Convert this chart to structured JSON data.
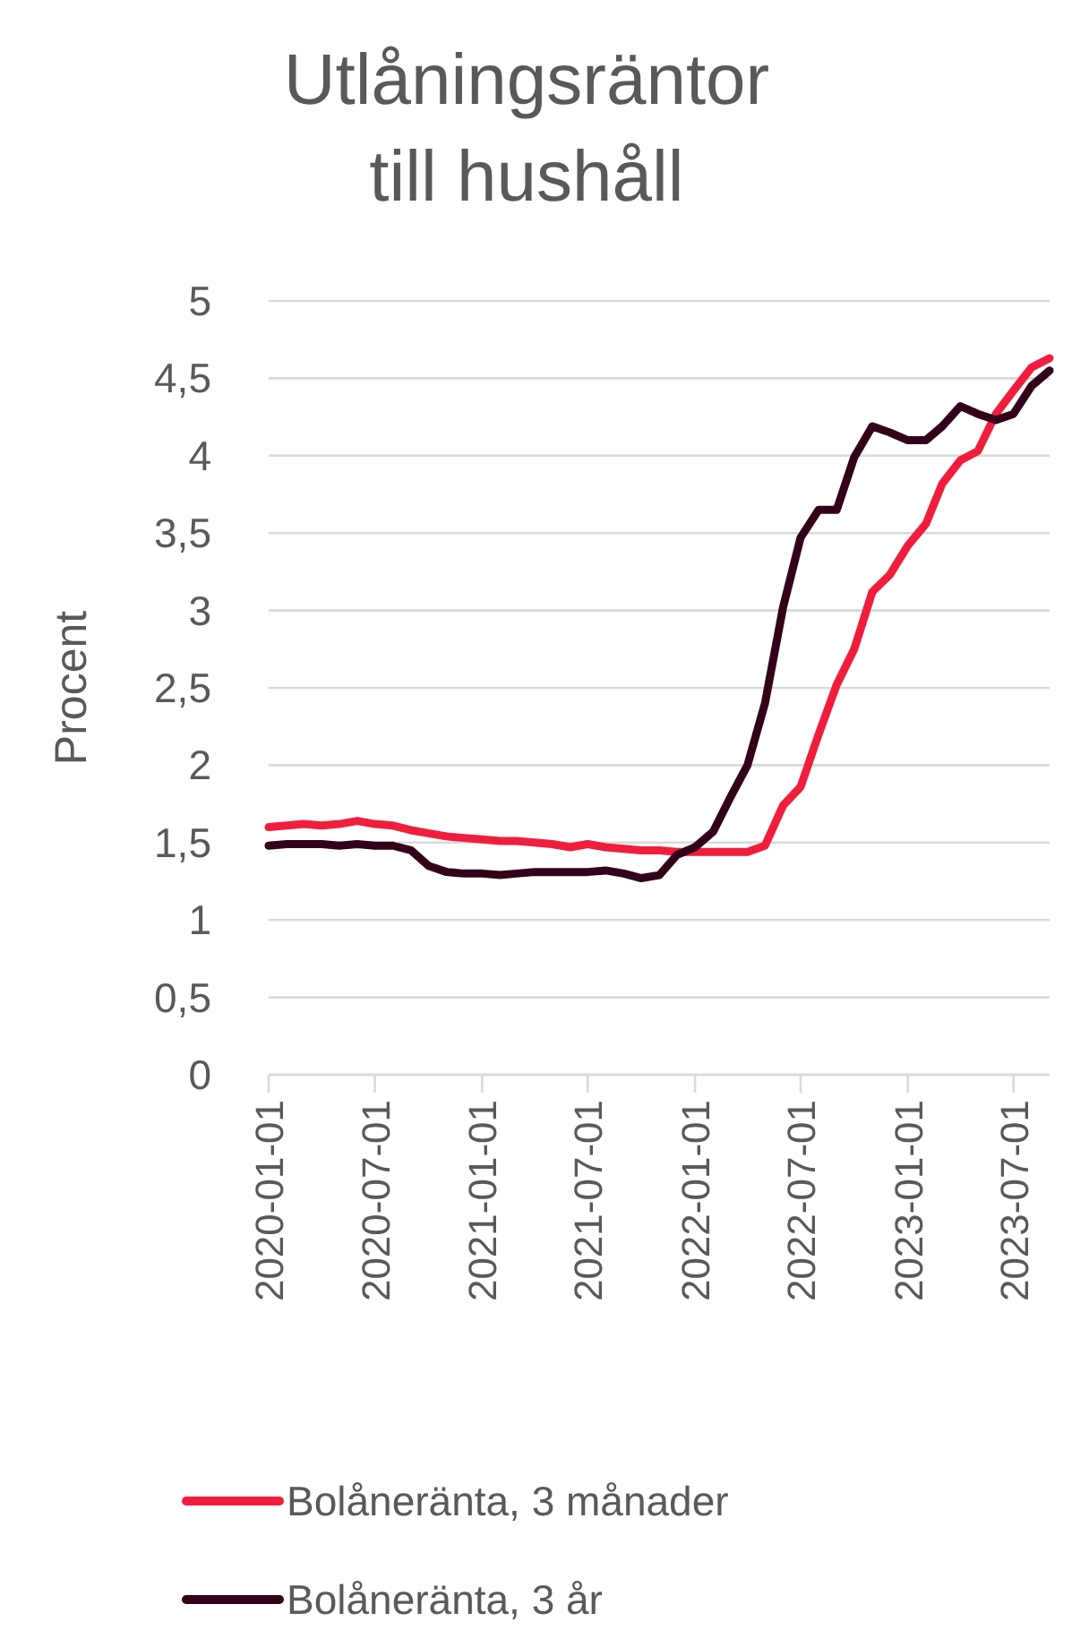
{
  "chart_data": {
    "type": "line",
    "title": "Utlåningsräntor till hushåll",
    "ylabel": "Procent",
    "x": [
      "2020-01",
      "2020-02",
      "2020-03",
      "2020-04",
      "2020-05",
      "2020-06",
      "2020-07",
      "2020-08",
      "2020-09",
      "2020-10",
      "2020-11",
      "2020-12",
      "2021-01",
      "2021-02",
      "2021-03",
      "2021-04",
      "2021-05",
      "2021-06",
      "2021-07",
      "2021-08",
      "2021-09",
      "2021-10",
      "2021-11",
      "2021-12",
      "2022-01",
      "2022-02",
      "2022-03",
      "2022-04",
      "2022-05",
      "2022-06",
      "2022-07",
      "2022-08",
      "2022-09",
      "2022-10",
      "2022-11",
      "2022-12",
      "2023-01",
      "2023-02",
      "2023-03",
      "2023-04",
      "2023-05",
      "2023-06",
      "2023-07",
      "2023-08",
      "2023-09"
    ],
    "series": [
      {
        "name": "Bolåneränta, 3 månader",
        "color": "#f01e3c",
        "values": [
          1.6,
          1.61,
          1.62,
          1.61,
          1.62,
          1.64,
          1.62,
          1.61,
          1.58,
          1.56,
          1.54,
          1.53,
          1.52,
          1.51,
          1.51,
          1.5,
          1.49,
          1.47,
          1.49,
          1.47,
          1.46,
          1.45,
          1.45,
          1.44,
          1.44,
          1.44,
          1.44,
          1.44,
          1.48,
          1.74,
          1.86,
          2.2,
          2.52,
          2.75,
          3.12,
          3.23,
          3.42,
          3.56,
          3.82,
          3.97,
          4.03,
          4.27,
          4.42,
          4.57,
          4.63
        ]
      },
      {
        "name": "Bolåneränta, 3 år",
        "color": "#33001a",
        "values": [
          1.48,
          1.49,
          1.49,
          1.49,
          1.48,
          1.49,
          1.48,
          1.48,
          1.45,
          1.35,
          1.31,
          1.3,
          1.3,
          1.29,
          1.3,
          1.31,
          1.31,
          1.31,
          1.31,
          1.32,
          1.3,
          1.27,
          1.29,
          1.42,
          1.47,
          1.57,
          1.78,
          2.0,
          2.4,
          3.02,
          3.47,
          3.65,
          3.65,
          3.99,
          4.19,
          4.15,
          4.1,
          4.1,
          4.19,
          4.32,
          4.27,
          4.23,
          4.27,
          4.45,
          4.55
        ]
      }
    ],
    "xlim": [
      "2020-01",
      "2023-09"
    ],
    "xticks": [
      "2020-01-01",
      "2020-07-01",
      "2021-01-01",
      "2021-07-01",
      "2022-01-01",
      "2022-07-01",
      "2023-01-01",
      "2023-07-01"
    ],
    "ylim": [
      0,
      5
    ],
    "yticks": [
      {
        "value": 0,
        "label": "0"
      },
      {
        "value": 0.5,
        "label": "0,5"
      },
      {
        "value": 1,
        "label": "1"
      },
      {
        "value": 1.5,
        "label": "1,5"
      },
      {
        "value": 2,
        "label": "2"
      },
      {
        "value": 2.5,
        "label": "2,5"
      },
      {
        "value": 3,
        "label": "3"
      },
      {
        "value": 3.5,
        "label": "3,5"
      },
      {
        "value": 4,
        "label": "4"
      },
      {
        "value": 4.5,
        "label": "4,5"
      },
      {
        "value": 5,
        "label": "5"
      }
    ],
    "grid": "y",
    "legend": "bottom",
    "marker": "none",
    "line_style": "solid"
  }
}
